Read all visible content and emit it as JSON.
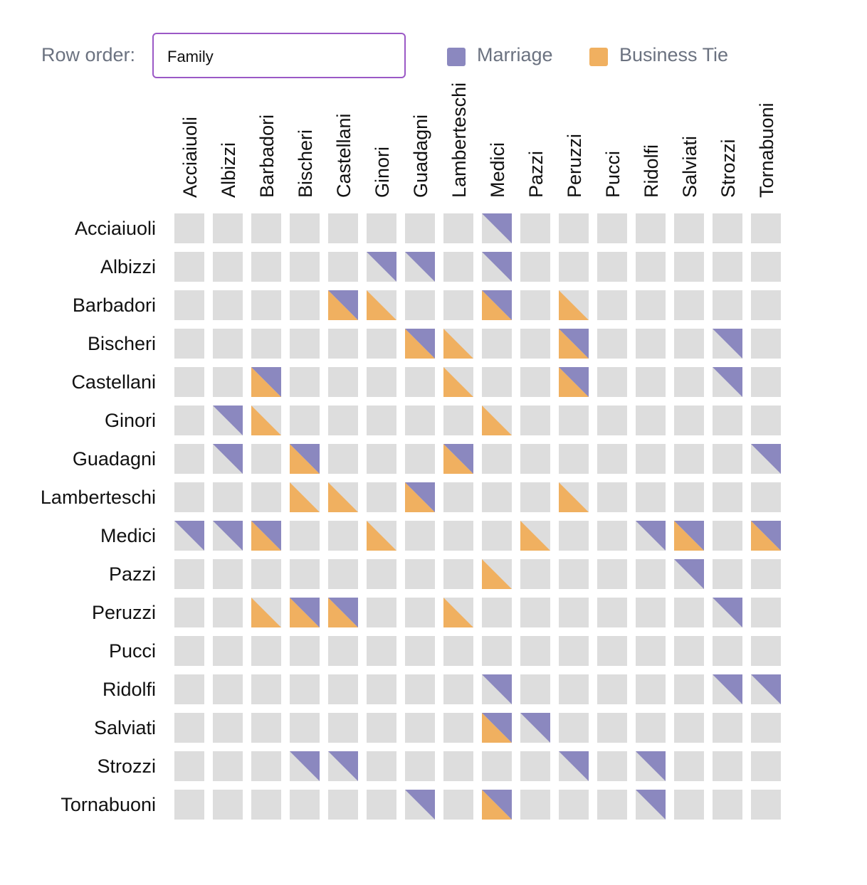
{
  "controls": {
    "row_order_label": "Row order:",
    "row_order_value": "Family"
  },
  "legend": {
    "marriage": "Marriage",
    "business": "Business Tie"
  },
  "colors": {
    "cell": "#dddddd",
    "marriage": "#8b88bf",
    "business": "#f0b060",
    "select_border": "#9b59c6"
  },
  "families": [
    "Acciaiuoli",
    "Albizzi",
    "Barbadori",
    "Bischeri",
    "Castellani",
    "Ginori",
    "Guadagni",
    "Lamberteschi",
    "Medici",
    "Pazzi",
    "Peruzzi",
    "Pucci",
    "Ridolfi",
    "Salviati",
    "Strozzi",
    "Tornabuoni"
  ],
  "chart_data": {
    "type": "heatmap",
    "rows": [
      "Acciaiuoli",
      "Albizzi",
      "Barbadori",
      "Bischeri",
      "Castellani",
      "Ginori",
      "Guadagni",
      "Lamberteschi",
      "Medici",
      "Pazzi",
      "Peruzzi",
      "Pucci",
      "Ridolfi",
      "Salviati",
      "Strozzi",
      "Tornabuoni"
    ],
    "columns": [
      "Acciaiuoli",
      "Albizzi",
      "Barbadori",
      "Bischeri",
      "Castellani",
      "Ginori",
      "Guadagni",
      "Lamberteschi",
      "Medici",
      "Pazzi",
      "Peruzzi",
      "Pucci",
      "Ridolfi",
      "Salviati",
      "Strozzi",
      "Tornabuoni"
    ],
    "legend": [
      "Marriage",
      "Business Tie"
    ],
    "marriage": [
      [
        0,
        8
      ],
      [
        1,
        5
      ],
      [
        1,
        6
      ],
      [
        1,
        8
      ],
      [
        2,
        4
      ],
      [
        2,
        8
      ],
      [
        3,
        6
      ],
      [
        3,
        10
      ],
      [
        3,
        14
      ],
      [
        4,
        2
      ],
      [
        4,
        10
      ],
      [
        4,
        14
      ],
      [
        5,
        1
      ],
      [
        6,
        1
      ],
      [
        6,
        3
      ],
      [
        6,
        7
      ],
      [
        6,
        15
      ],
      [
        7,
        6
      ],
      [
        8,
        0
      ],
      [
        8,
        1
      ],
      [
        8,
        2
      ],
      [
        8,
        12
      ],
      [
        8,
        13
      ],
      [
        8,
        15
      ],
      [
        9,
        13
      ],
      [
        10,
        3
      ],
      [
        10,
        4
      ],
      [
        10,
        14
      ],
      [
        12,
        8
      ],
      [
        12,
        14
      ],
      [
        12,
        15
      ],
      [
        13,
        8
      ],
      [
        13,
        9
      ],
      [
        14,
        3
      ],
      [
        14,
        4
      ],
      [
        14,
        10
      ],
      [
        14,
        12
      ],
      [
        15,
        6
      ],
      [
        15,
        8
      ],
      [
        15,
        12
      ]
    ],
    "business": [
      [
        2,
        4
      ],
      [
        2,
        5
      ],
      [
        2,
        8
      ],
      [
        2,
        10
      ],
      [
        3,
        6
      ],
      [
        3,
        7
      ],
      [
        3,
        10
      ],
      [
        4,
        2
      ],
      [
        4,
        7
      ],
      [
        4,
        10
      ],
      [
        5,
        2
      ],
      [
        5,
        8
      ],
      [
        6,
        3
      ],
      [
        6,
        7
      ],
      [
        7,
        3
      ],
      [
        7,
        4
      ],
      [
        7,
        6
      ],
      [
        7,
        10
      ],
      [
        8,
        2
      ],
      [
        8,
        5
      ],
      [
        8,
        9
      ],
      [
        8,
        13
      ],
      [
        8,
        15
      ],
      [
        9,
        8
      ],
      [
        10,
        2
      ],
      [
        10,
        3
      ],
      [
        10,
        4
      ],
      [
        10,
        7
      ],
      [
        13,
        8
      ],
      [
        15,
        8
      ]
    ]
  }
}
